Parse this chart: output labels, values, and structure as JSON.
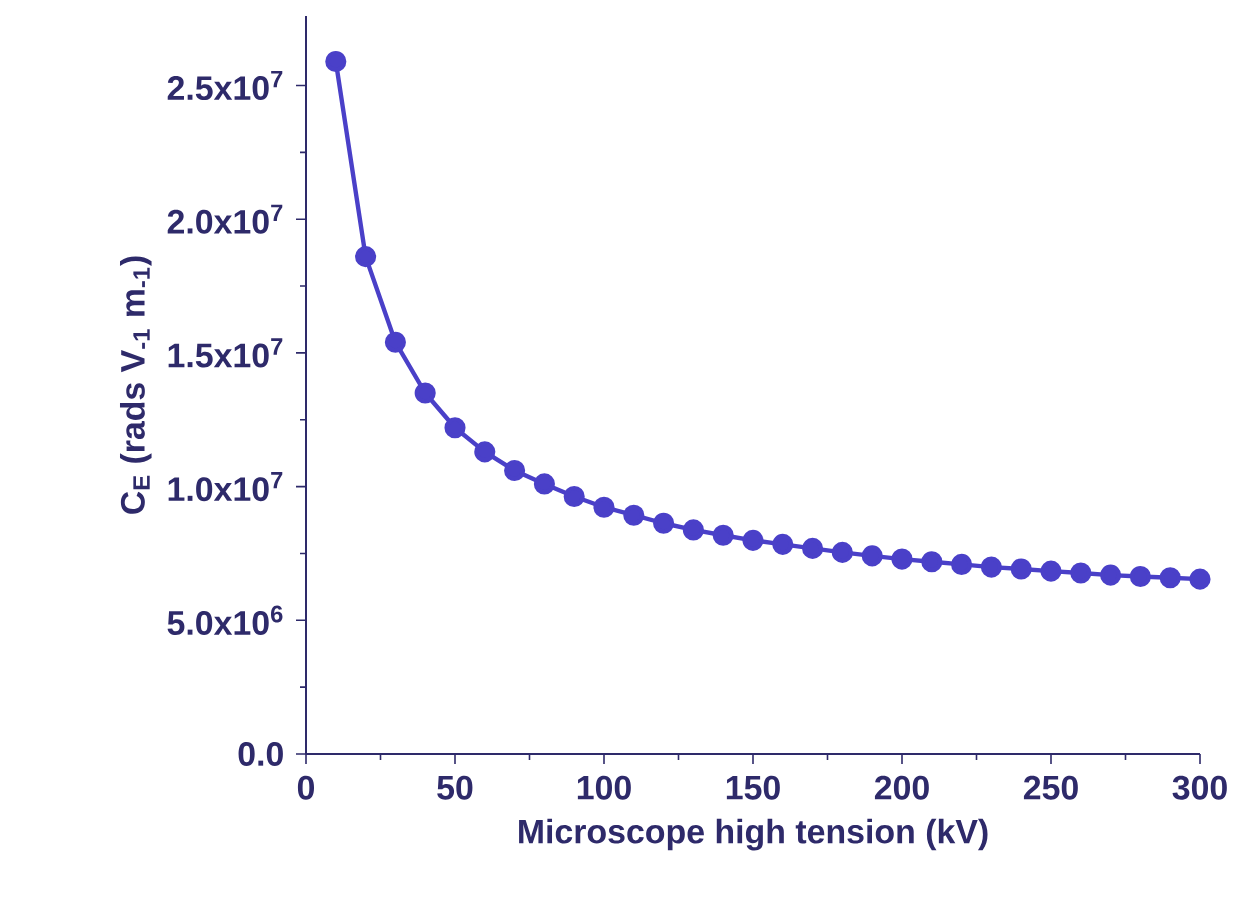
{
  "chart_data": {
    "type": "line",
    "xlabel": "Microscope high tension (kV)",
    "ylabel": "C$_{E}$ (rads V$_{-1}$ m$_{-1}$)",
    "marker": "circle",
    "line_style": "solid",
    "xlim": [
      0,
      300
    ],
    "ylim": [
      0,
      27600000
    ],
    "xticks": [
      0,
      50,
      100,
      150,
      200,
      250,
      300
    ],
    "yticks": [
      {
        "value": 0,
        "label": "0.0"
      },
      {
        "value": 5000000,
        "label": "5.0x10$^{6}$"
      },
      {
        "value": 10000000,
        "label": "1.0x10$^{7}$"
      },
      {
        "value": 15000000,
        "label": "1.5x10$^{7}$"
      },
      {
        "value": 20000000,
        "label": "2.0x10$^{7}$"
      },
      {
        "value": 25000000,
        "label": "2.5x10$^{7}$"
      }
    ],
    "series": [
      {
        "color": "#4a40c8",
        "x": [
          10,
          20,
          30,
          40,
          50,
          60,
          70,
          80,
          90,
          100,
          110,
          120,
          130,
          140,
          150,
          160,
          170,
          180,
          190,
          200,
          210,
          220,
          230,
          240,
          250,
          260,
          270,
          280,
          290,
          300
        ],
        "values": [
          25900000,
          18600000,
          15400000,
          13500000,
          12200000,
          11300000,
          10600000,
          10100000,
          9630000,
          9230000,
          8930000,
          8630000,
          8380000,
          8180000,
          7990000,
          7840000,
          7690000,
          7540000,
          7410000,
          7290000,
          7190000,
          7090000,
          6990000,
          6920000,
          6840000,
          6770000,
          6690000,
          6640000,
          6590000,
          6540000
        ]
      }
    ]
  }
}
